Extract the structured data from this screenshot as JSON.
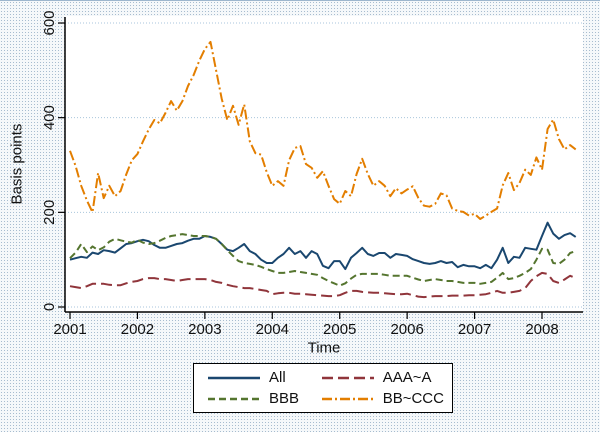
{
  "figure": {
    "yaxis_title": "Basis points",
    "xaxis_title": "Time",
    "colors": {
      "plot_background": "#ffffff",
      "grid": "#a9c6dc",
      "axis": "#000000",
      "text": "#111111",
      "legend_background": "#ffffff",
      "legend_border": "#000000",
      "all_line": "#1a476f",
      "aaa_a_line": "#90353b",
      "bbb_line": "#55752f",
      "bb_ccc_line": "#e37e00"
    }
  },
  "chart_data": {
    "type": "line",
    "title": "",
    "xlabel": "Time",
    "ylabel": "Basis points",
    "x_ticks": [
      2001,
      2002,
      2003,
      2004,
      2005,
      2006,
      2007,
      2008
    ],
    "y_ticks": [
      0,
      200,
      400,
      600
    ],
    "xlim": [
      2001,
      2008.6
    ],
    "ylim": [
      0,
      615
    ],
    "grid": true,
    "legend_position": "bottom-center",
    "x_start": 2001.0,
    "x_step": 0.0833333,
    "series": [
      {
        "name": "All",
        "color": "#1a476f",
        "dash": "solid",
        "values": [
          100,
          103,
          106,
          104,
          115,
          112,
          120,
          118,
          115,
          124,
          133,
          135,
          139,
          142,
          139,
          131,
          125,
          125,
          129,
          133,
          135,
          140,
          144,
          144,
          150,
          148,
          144,
          133,
          121,
          118,
          125,
          133,
          118,
          112,
          100,
          93,
          93,
          104,
          112,
          125,
          112,
          118,
          104,
          118,
          112,
          87,
          82,
          97,
          97,
          80,
          104,
          114,
          125,
          112,
          108,
          114,
          114,
          104,
          112,
          110,
          108,
          101,
          97,
          93,
          91,
          93,
          97,
          93,
          95,
          84,
          89,
          86,
          86,
          82,
          89,
          82,
          100,
          125,
          93,
          106,
          104,
          125,
          123,
          121,
          150,
          178,
          155,
          144,
          152,
          156,
          148
        ]
      },
      {
        "name": "AAA~A",
        "color": "#90353b",
        "dash": "long-dash",
        "values": [
          44,
          42,
          40,
          44,
          49,
          49,
          49,
          47,
          46,
          46,
          50,
          53,
          55,
          59,
          61,
          61,
          59,
          59,
          57,
          55,
          57,
          59,
          59,
          59,
          59,
          57,
          53,
          51,
          47,
          44,
          42,
          40,
          40,
          38,
          36,
          34,
          27,
          29,
          30,
          30,
          28,
          28,
          27,
          26,
          25,
          24,
          23,
          23,
          25,
          30,
          34,
          34,
          32,
          31,
          30,
          30,
          29,
          28,
          27,
          27,
          28,
          25,
          22,
          21,
          22,
          23,
          23,
          23,
          24,
          24,
          24,
          25,
          25,
          26,
          27,
          30,
          34,
          30,
          30,
          32,
          34,
          40,
          55,
          65,
          72,
          70,
          55,
          51,
          58,
          66,
          61
        ]
      },
      {
        "name": "BBB",
        "color": "#55752f",
        "dash": "dash",
        "values": [
          103,
          115,
          133,
          116,
          128,
          120,
          126,
          138,
          144,
          141,
          138,
          136,
          142,
          136,
          133,
          135,
          140,
          146,
          150,
          152,
          154,
          152,
          150,
          150,
          150,
          148,
          144,
          133,
          120,
          108,
          97,
          93,
          91,
          89,
          85,
          80,
          76,
          72,
          72,
          74,
          76,
          74,
          72,
          70,
          68,
          61,
          55,
          50,
          45,
          50,
          60,
          68,
          70,
          70,
          70,
          70,
          68,
          66,
          66,
          66,
          66,
          62,
          58,
          55,
          57,
          59,
          57,
          55,
          55,
          53,
          51,
          51,
          51,
          49,
          51,
          53,
          62,
          72,
          59,
          61,
          66,
          72,
          80,
          100,
          123,
          121,
          93,
          91,
          100,
          114,
          118
        ]
      },
      {
        "name": "BB~CCC",
        "color": "#e37e00",
        "dash": "dash-dot",
        "values": [
          330,
          298,
          256,
          225,
          200,
          283,
          230,
          256,
          234,
          245,
          280,
          310,
          323,
          350,
          375,
          395,
          388,
          410,
          435,
          415,
          435,
          467,
          490,
          520,
          545,
          560,
          500,
          440,
          395,
          425,
          385,
          428,
          350,
          325,
          322,
          285,
          256,
          266,
          256,
          310,
          336,
          340,
          302,
          294,
          273,
          287,
          256,
          228,
          218,
          245,
          234,
          281,
          313,
          281,
          256,
          266,
          256,
          234,
          251,
          240,
          248,
          255,
          230,
          214,
          212,
          218,
          240,
          236,
          208,
          203,
          201,
          193,
          197,
          186,
          193,
          201,
          208,
          257,
          283,
          247,
          262,
          290,
          279,
          316,
          290,
          376,
          396,
          355,
          333,
          342,
          333
        ]
      }
    ]
  }
}
